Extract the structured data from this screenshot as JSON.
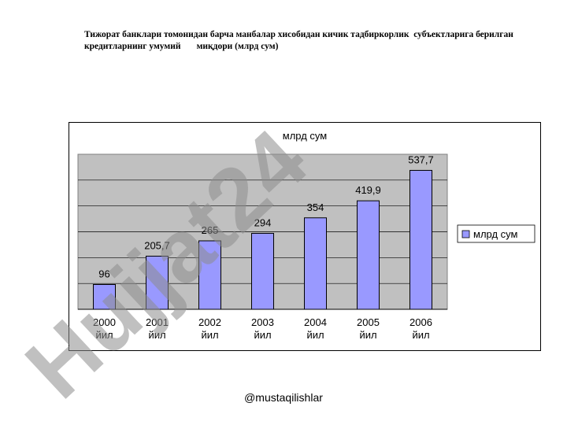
{
  "page": {
    "title": "Тижорат банклари томонидан барча манбалар хисобидан кичик тадбиркорлик  субъектларига берилган\nкредитларнинг умумий       миқдори (млрд сум)",
    "watermark": "Hujjat24",
    "footer": "@mustaqilishlar"
  },
  "chart_data": {
    "type": "bar",
    "title": "млрд сум",
    "categories": [
      [
        "2000",
        "йил"
      ],
      [
        "2001",
        "йил"
      ],
      [
        "2002",
        "йил"
      ],
      [
        "2003",
        "йил"
      ],
      [
        "2004",
        "йил"
      ],
      [
        "2005",
        "йил"
      ],
      [
        "2006",
        "йил"
      ]
    ],
    "series": [
      {
        "name": "млрд сум",
        "values": [
          96,
          205.7,
          265,
          294,
          354,
          419.9,
          537.7
        ],
        "labels": [
          "96",
          "205,7",
          "265",
          "294",
          "354",
          "419,9",
          "537,7"
        ]
      }
    ],
    "ylim": [
      0,
      600
    ],
    "grid": true,
    "legend": "right",
    "colors": {
      "bar": "#9999ff",
      "plot_bg": "#c0c0c0",
      "grid": "#000000"
    }
  }
}
